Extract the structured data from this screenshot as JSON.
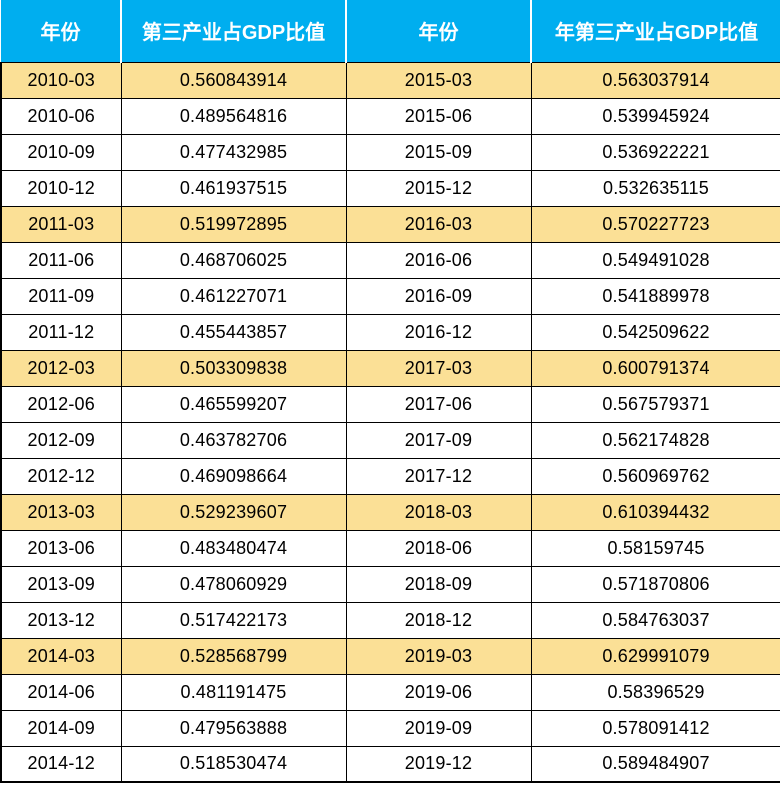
{
  "chart_data": {
    "type": "table",
    "columns": [
      "年份",
      "第三产业占GDP比值",
      "年份",
      "年第三产业占GDP比值"
    ],
    "rows": [
      [
        "2010-03",
        "0.560843914",
        "2015-03",
        "0.563037914"
      ],
      [
        "2010-06",
        "0.489564816",
        "2015-06",
        "0.539945924"
      ],
      [
        "2010-09",
        "0.477432985",
        "2015-09",
        "0.536922221"
      ],
      [
        "2010-12",
        "0.461937515",
        "2015-12",
        "0.532635115"
      ],
      [
        "2011-03",
        "0.519972895",
        "2016-03",
        "0.570227723"
      ],
      [
        "2011-06",
        "0.468706025",
        "2016-06",
        "0.549491028"
      ],
      [
        "2011-09",
        "0.461227071",
        "2016-09",
        "0.541889978"
      ],
      [
        "2011-12",
        "0.455443857",
        "2016-12",
        "0.542509622"
      ],
      [
        "2012-03",
        "0.503309838",
        "2017-03",
        "0.600791374"
      ],
      [
        "2012-06",
        "0.465599207",
        "2017-06",
        "0.567579371"
      ],
      [
        "2012-09",
        "0.463782706",
        "2017-09",
        "0.562174828"
      ],
      [
        "2012-12",
        "0.469098664",
        "2017-12",
        "0.560969762"
      ],
      [
        "2013-03",
        "0.529239607",
        "2018-03",
        "0.610394432"
      ],
      [
        "2013-06",
        "0.483480474",
        "2018-06",
        "0.58159745"
      ],
      [
        "2013-09",
        "0.478060929",
        "2018-09",
        "0.571870806"
      ],
      [
        "2013-12",
        "0.517422173",
        "2018-12",
        "0.584763037"
      ],
      [
        "2014-03",
        "0.528568799",
        "2019-03",
        "0.629991079"
      ],
      [
        "2014-06",
        "0.481191475",
        "2019-06",
        "0.58396529"
      ],
      [
        "2014-09",
        "0.479563888",
        "2019-09",
        "0.578091412"
      ],
      [
        "2014-12",
        "0.518530474",
        "2019-12",
        "0.589484907"
      ]
    ],
    "highlighted_rows": [
      0,
      4,
      8,
      12,
      16
    ],
    "legend_position": "none",
    "title": ""
  },
  "colors": {
    "header_bg": "#00AEEF",
    "header_text": "#FFFFFF",
    "highlight_row_bg": "#FBE096",
    "row_bg": "#FFFFFF",
    "grid_line": "#000000",
    "data_text": "#000000"
  }
}
